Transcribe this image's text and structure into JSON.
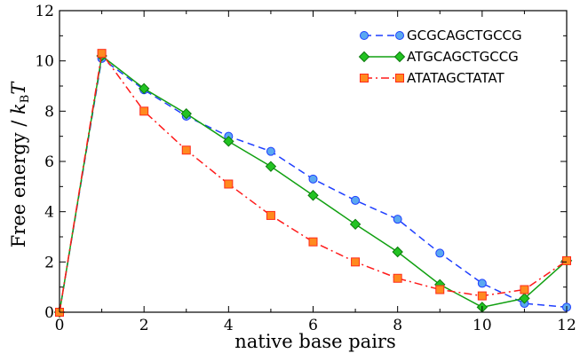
{
  "chart_data": {
    "type": "line",
    "xlabel": "native base pairs",
    "ylabel_main": "Free energy / ",
    "ylabel_k": "k",
    "ylabel_sub": "B",
    "ylabel_T": "T",
    "xlim": [
      0,
      12
    ],
    "ylim": [
      0,
      12
    ],
    "xticks": [
      0,
      2,
      4,
      6,
      8,
      10,
      12
    ],
    "yticks": [
      0,
      2,
      4,
      6,
      8,
      10,
      12
    ],
    "grid": false,
    "legend_position": "top-right",
    "series": [
      {
        "name": "GCGCAGCTGCCG",
        "color": "#1f3fff",
        "marker_fill": "#5aa8f0",
        "marker": "circle",
        "dash": "8,5",
        "x": [
          0,
          1,
          2,
          3,
          4,
          5,
          6,
          7,
          8,
          9,
          10,
          11,
          12
        ],
        "y": [
          0.0,
          10.1,
          8.85,
          7.8,
          7.0,
          6.4,
          5.3,
          4.45,
          3.7,
          2.35,
          1.15,
          0.35,
          0.2
        ]
      },
      {
        "name": "ATGCAGCTGCCG",
        "color": "#11a011",
        "marker_fill": "#22c322",
        "marker": "diamond",
        "dash": "",
        "x": [
          0,
          1,
          2,
          3,
          4,
          5,
          6,
          7,
          8,
          9,
          10,
          11,
          12
        ],
        "y": [
          0.0,
          10.2,
          8.9,
          7.9,
          6.8,
          5.8,
          4.65,
          3.5,
          2.4,
          1.1,
          0.2,
          0.55,
          2.05
        ]
      },
      {
        "name": "ATATAGCTATAT",
        "color": "#ff1a1a",
        "marker_fill": "#ff8a1f",
        "marker": "square",
        "dash": "9,4,2,4",
        "x": [
          0,
          1,
          2,
          3,
          4,
          5,
          6,
          7,
          8,
          9,
          10,
          11,
          12
        ],
        "y": [
          0.0,
          10.3,
          8.0,
          6.45,
          5.1,
          3.85,
          2.8,
          2.0,
          1.35,
          0.9,
          0.65,
          0.9,
          2.05
        ]
      }
    ]
  }
}
